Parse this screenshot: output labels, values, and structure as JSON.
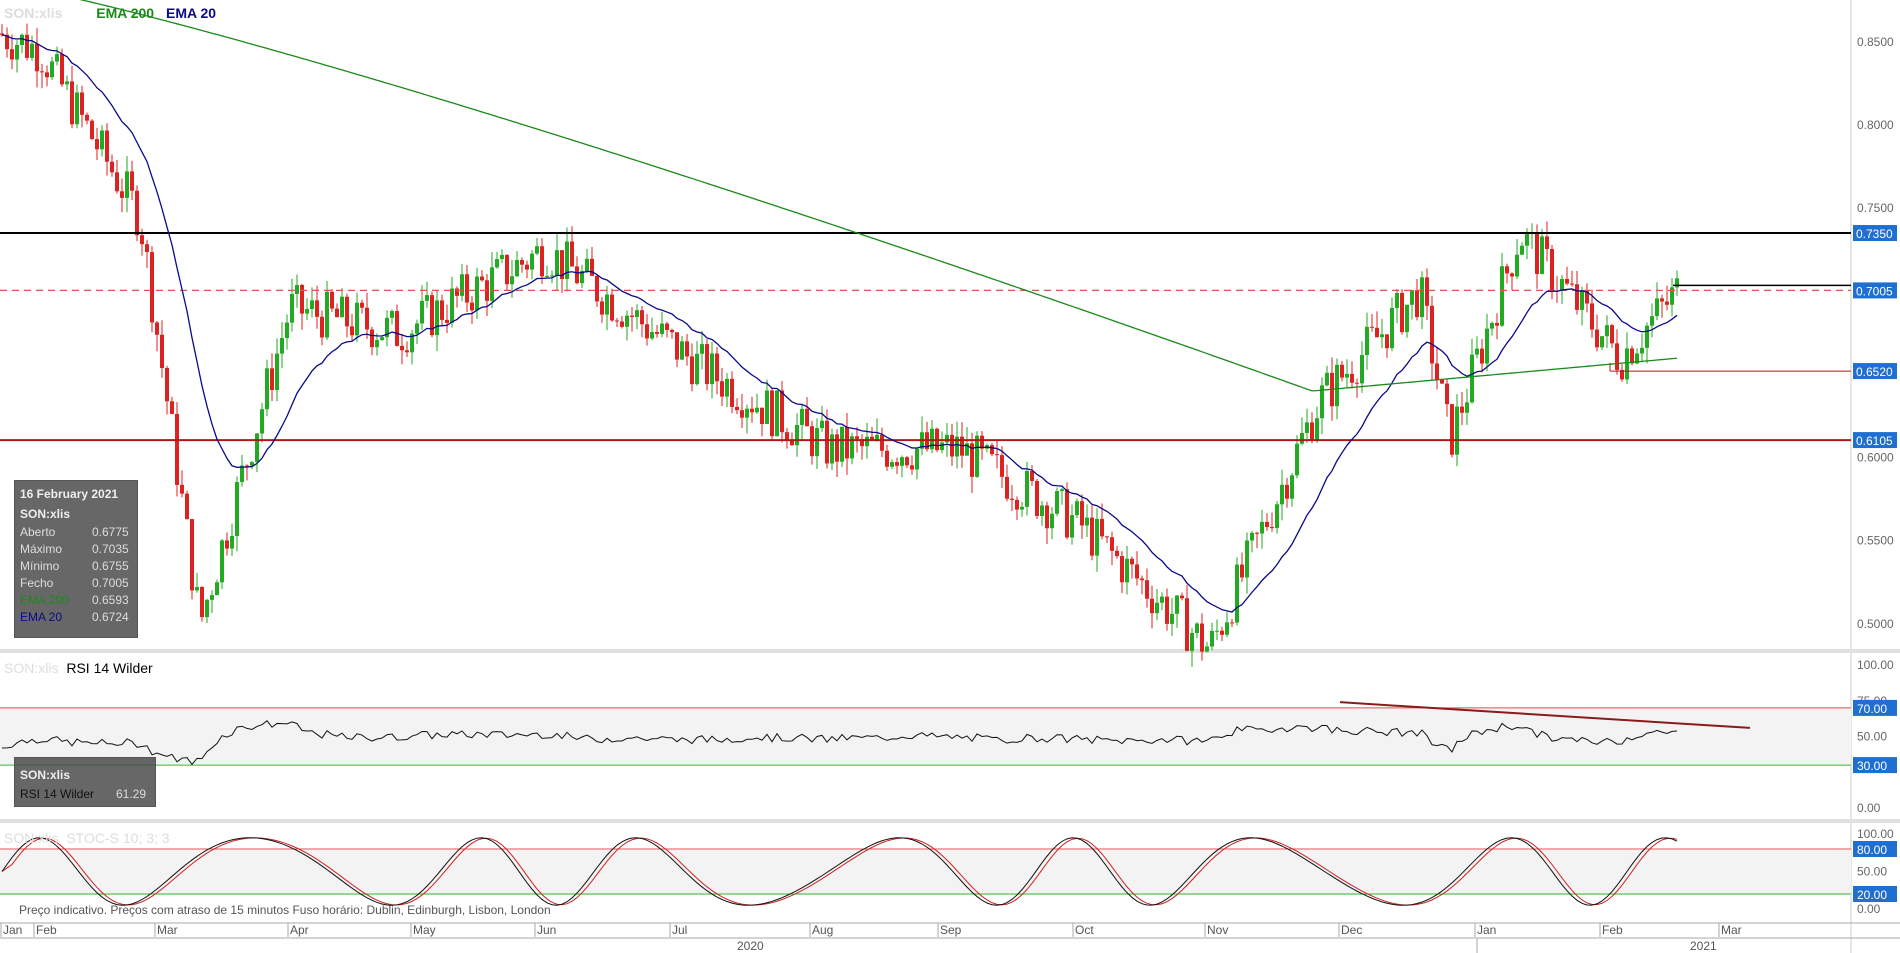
{
  "header": {
    "symbol": "SON:xlis",
    "ema200_label": "EMA 200",
    "ema20_label": "EMA 20",
    "ema200_color": "#1a8a1a",
    "ema20_color": "#0a0a8a"
  },
  "rsi_header": {
    "symbol": "SON:xlis",
    "label": "RSI 14 Wilder"
  },
  "stoch_header": {
    "symbol": "SON:xlis",
    "label": "STOC-S 10; 3; 3"
  },
  "info_box": {
    "date": "16 February 2021",
    "symbol": "SON:xlis",
    "rows": [
      {
        "k": "Aberto",
        "v": "0.6775"
      },
      {
        "k": "Máximo",
        "v": "0.7035"
      },
      {
        "k": "Mínimo",
        "v": "0.6755"
      },
      {
        "k": "Fecho",
        "v": "0.7005"
      },
      {
        "k": "EMA 200",
        "v": "0.6593"
      },
      {
        "k": "EMA 20",
        "v": "0.6724"
      }
    ]
  },
  "rsi_box": {
    "symbol": "SON:xlis",
    "label": "RSI 14 Wilder",
    "value": "61.29"
  },
  "footer": {
    "note": "Preço indicativo. Preços com atraso de 15 minutos    Fuso horário: Dublin, Edinburgh, Lisbon, London"
  },
  "chart_data": [
    {
      "type": "candlestick",
      "title": "SON:xlis",
      "x_months": [
        "Jan",
        "Feb",
        "Mar",
        "Apr",
        "May",
        "Jun",
        "Jul",
        "Aug",
        "Sep",
        "Oct",
        "Nov",
        "Dec",
        "Jan",
        "Feb",
        "Mar"
      ],
      "x_years": [
        "2020",
        "2021"
      ],
      "y_ticks": [
        "0.8500",
        "0.8000",
        "0.7500",
        "0.7000",
        "0.6500",
        "0.6000",
        "0.5500",
        "0.5000"
      ],
      "ylim": [
        0.475,
        0.905
      ],
      "price_labels": [
        "0.7350",
        "0.7005",
        "0.6520",
        "0.6105"
      ],
      "horizontal_lines": [
        {
          "value": 0.735,
          "style": "solid",
          "color": "#000000"
        },
        {
          "value": 0.7005,
          "style": "dashed",
          "color": "#e05050"
        },
        {
          "value": 0.6105,
          "style": "solid",
          "color": "#b01818"
        }
      ],
      "monthly_path": [
        {
          "month": "Jan 2020",
          "value": 0.855
        },
        {
          "month": "Feb 2020",
          "value": 0.845
        },
        {
          "month": "Mar 2020",
          "value": 0.745
        },
        {
          "month": "Mar 2020 low",
          "value": 0.5
        },
        {
          "month": "Apr 2020",
          "value": 0.69
        },
        {
          "month": "May 2020",
          "value": 0.675
        },
        {
          "month": "Jun 2020",
          "value": 0.725
        },
        {
          "month": "Jul 2020",
          "value": 0.655
        },
        {
          "month": "Aug 2020",
          "value": 0.605
        },
        {
          "month": "Sep 2020",
          "value": 0.605
        },
        {
          "month": "Oct 2020",
          "value": 0.56
        },
        {
          "month": "Oct 2020 low",
          "value": 0.485
        },
        {
          "month": "Nov 2020",
          "value": 0.635
        },
        {
          "month": "Dec 2020",
          "value": 0.7
        },
        {
          "month": "Dec 2020 low",
          "value": 0.61
        },
        {
          "month": "Jan 2021",
          "value": 0.735
        },
        {
          "month": "Feb 2021",
          "value": 0.66
        },
        {
          "month": "16 Feb 2021",
          "value": 0.7005
        }
      ],
      "series": [
        {
          "name": "EMA 200",
          "color": "#1a8a1a"
        },
        {
          "name": "EMA 20",
          "color": "#0a0a8a"
        }
      ]
    },
    {
      "type": "line",
      "title": "RSI 14 Wilder",
      "y_ticks": [
        "100.00",
        "75.00",
        "50.00",
        "0.00"
      ],
      "ylim": [
        0,
        100
      ],
      "levels": [
        {
          "value": 70,
          "label": "70.00"
        },
        {
          "value": 30,
          "label": "30.00"
        }
      ],
      "last_value": 61.29
    },
    {
      "type": "line",
      "title": "STOC-S 10; 3; 3",
      "y_ticks": [
        "100.00",
        "50.00",
        "0.00"
      ],
      "ylim": [
        0,
        100
      ],
      "levels": [
        {
          "value": 80,
          "label": "80.00"
        },
        {
          "value": 20,
          "label": "20.00"
        }
      ]
    }
  ]
}
